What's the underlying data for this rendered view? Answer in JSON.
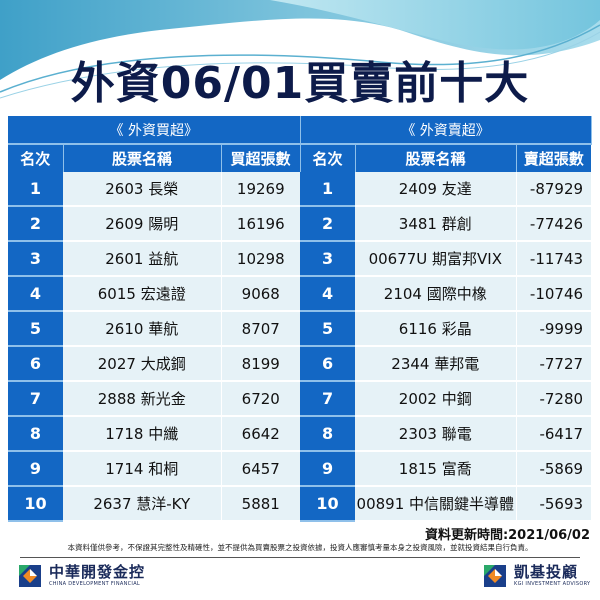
{
  "title": "外資06/01買賣前十大",
  "colors": {
    "header_blue": "#1367c4",
    "cell_bg": "#e6f2f7",
    "title_color": "#0d1b4a"
  },
  "buy": {
    "section_label": "《 外資買超》",
    "columns": [
      "名次",
      "股票名稱",
      "買超張數"
    ],
    "rows": [
      {
        "rank": "1",
        "name": "2603 長榮",
        "value": "19269"
      },
      {
        "rank": "2",
        "name": "2609 陽明",
        "value": "16196"
      },
      {
        "rank": "3",
        "name": "2601 益航",
        "value": "10298"
      },
      {
        "rank": "4",
        "name": "6015 宏遠證",
        "value": "9068"
      },
      {
        "rank": "5",
        "name": "2610 華航",
        "value": "8707"
      },
      {
        "rank": "6",
        "name": "2027 大成鋼",
        "value": "8199"
      },
      {
        "rank": "7",
        "name": "2888 新光金",
        "value": "6720"
      },
      {
        "rank": "8",
        "name": "1718 中纖",
        "value": "6642"
      },
      {
        "rank": "9",
        "name": "1714 和桐",
        "value": "6457"
      },
      {
        "rank": "10",
        "name": "2637 慧洋-KY",
        "value": "5881"
      }
    ]
  },
  "sell": {
    "section_label": "《 外資賣超》",
    "columns": [
      "名次",
      "股票名稱",
      "賣超張數"
    ],
    "rows": [
      {
        "rank": "1",
        "name": "2409 友達",
        "value": "-87929"
      },
      {
        "rank": "2",
        "name": "3481 群創",
        "value": "-77426"
      },
      {
        "rank": "3",
        "name": "00677U 期富邦VIX",
        "value": "-11743"
      },
      {
        "rank": "4",
        "name": "2104 國際中橡",
        "value": "-10746"
      },
      {
        "rank": "5",
        "name": "6116 彩晶",
        "value": "-9999"
      },
      {
        "rank": "6",
        "name": "2344 華邦電",
        "value": "-7727"
      },
      {
        "rank": "7",
        "name": "2002 中鋼",
        "value": "-7280"
      },
      {
        "rank": "8",
        "name": "2303 聯電",
        "value": "-6417"
      },
      {
        "rank": "9",
        "name": "1815 富喬",
        "value": "-5869"
      },
      {
        "rank": "10",
        "name": "00891 中信關鍵半導體",
        "value": "-5693"
      }
    ]
  },
  "update_time": "資料更新時間:2021/06/02",
  "disclaimer": "本資料僅供參考，不保證其完整性及精確性，並不提供為買賣股票之投資依據，投資人應審慎考量本身之投資風險，並就投資結果自行負責。",
  "logos": {
    "left": {
      "main": "中華開發金控",
      "sub": "CHINA DEVELOPMENT FINANCIAL",
      "icon": "cdf-logo-icon"
    },
    "right": {
      "main": "凱基投顧",
      "sub": "KGI INVESTMENT ADVISORY",
      "icon": "kgi-logo-icon"
    }
  }
}
